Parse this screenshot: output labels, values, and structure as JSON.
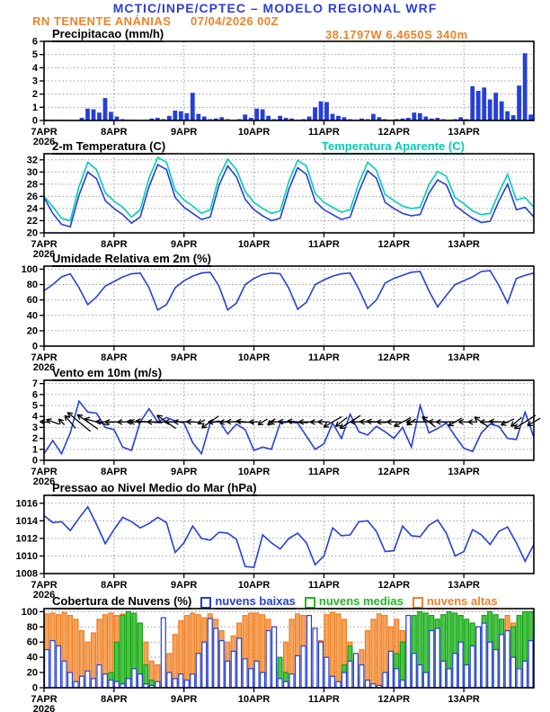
{
  "header": {
    "title": "MCTIC/INPE/CPTEC – MODELO REGIONAL WRF",
    "station": "RN TENENTE ANÁNIAS",
    "datetime": "07/04/2026 00Z",
    "coordinates": "38.1797W 6.4650S 340m"
  },
  "colors": {
    "header_blue": "#2d3fd4",
    "orange": "#f08228",
    "line_blue": "#2540d8",
    "cyan": "#00cdb7",
    "green": "#1fba20",
    "grid_gray": "#9a9a9a",
    "frame_black": "#000000"
  },
  "x_axis": {
    "labels": [
      "7APR",
      "8APR",
      "9APR",
      "10APR",
      "11APR",
      "12APR",
      "13APR"
    ],
    "year": "2026",
    "span_hours": 168
  },
  "chart_data": [
    {
      "name": "precipitation",
      "type": "bar",
      "title": "Precipitacao (mm/h)",
      "ylabel_unit": "mm/h",
      "ylim": [
        0,
        6
      ],
      "yticks": [
        0,
        1,
        2,
        3,
        4,
        5,
        6
      ],
      "step_hours": 2,
      "bar_color": "#2540d8",
      "values": [
        0.05,
        0.05,
        0.05,
        0,
        0,
        0,
        0.2,
        0.9,
        0.85,
        0.6,
        1.7,
        0.65,
        0.3,
        0.1,
        0.05,
        0.05,
        0,
        0.05,
        0.15,
        0.2,
        0.1,
        0.35,
        0.75,
        0.7,
        0.55,
        2.1,
        0.5,
        0.3,
        0.1,
        0.15,
        0.25,
        0.1,
        0.05,
        0.1,
        0.45,
        0.2,
        0.9,
        0.85,
        0.35,
        0.1,
        0.35,
        0.2,
        0.15,
        0.05,
        0.1,
        0.3,
        1.0,
        1.45,
        1.4,
        0.5,
        0.35,
        0.25,
        0.1,
        0.05,
        0.15,
        0.1,
        0.5,
        0.25,
        0.1,
        0.05,
        0.1,
        0.15,
        0.2,
        0.6,
        0.55,
        0.3,
        0.15,
        0.2,
        0.1,
        0.05,
        0.1,
        0.25,
        0.1,
        2.6,
        2.25,
        2.5,
        1.6,
        2.1,
        1.45,
        0.7,
        0.4,
        2.65,
        5.1,
        0.45
      ]
    },
    {
      "name": "temperature",
      "type": "line",
      "title": "2-m Temperatura (C)",
      "title2": "Temperatura Aparente (C)",
      "ylim": [
        20,
        33
      ],
      "yticks": [
        20,
        22,
        24,
        26,
        28,
        30,
        32
      ],
      "step_hours": 3,
      "series": [
        {
          "name": "2-m Temperatura (C)",
          "color": "#2540d8",
          "values": [
            25.8,
            23.2,
            21.4,
            21,
            26.2,
            30,
            28.9,
            25.3,
            24,
            23,
            21.6,
            22.6,
            27.6,
            31.2,
            30.4,
            25.8,
            24.2,
            23.2,
            22.2,
            22.6,
            27.8,
            31,
            29.2,
            25.5,
            23.8,
            22.8,
            22,
            22.4,
            27.2,
            30.7,
            29.6,
            25.2,
            23.8,
            23,
            22.2,
            22.6,
            26.8,
            30.2,
            29,
            25,
            24,
            23.2,
            22.8,
            23,
            26.5,
            28.7,
            27.9,
            24.5,
            23.4,
            22.4,
            21.7,
            21.9,
            25.2,
            28,
            23.8,
            24.2,
            22.6
          ]
        },
        {
          "name": "Temperatura Aparente (C)",
          "color": "#00cdb7",
          "values": [
            26,
            24.3,
            22.4,
            22,
            27.6,
            31.6,
            30.4,
            26.6,
            25.2,
            24.2,
            22.6,
            23.8,
            29,
            32.4,
            31.6,
            27,
            25.4,
            24.4,
            23.2,
            23.8,
            29.2,
            32.1,
            30.4,
            26.8,
            25,
            24,
            23.2,
            23.6,
            28.5,
            31.9,
            31,
            26.5,
            25,
            24.2,
            23.4,
            23.8,
            28.2,
            31.6,
            30.3,
            26.3,
            25.3,
            24.4,
            24,
            24.2,
            27.9,
            30.1,
            29.3,
            25.8,
            24.8,
            23.6,
            23,
            23.2,
            26.6,
            29.6,
            25.4,
            25.8,
            24.2
          ]
        }
      ]
    },
    {
      "name": "relative-humidity",
      "type": "line",
      "title": "Umidade Relativa em 2m (%)",
      "ylim": [
        0,
        104
      ],
      "yticks": [
        0,
        20,
        40,
        60,
        80,
        100
      ],
      "step_hours": 3,
      "series": [
        {
          "name": "Umidade Relativa",
          "color": "#2540d8",
          "values": [
            72,
            80,
            90,
            94,
            76,
            54,
            64,
            78,
            84,
            90,
            94,
            95,
            76,
            47,
            54,
            76,
            85,
            91,
            95,
            96,
            78,
            47,
            56,
            80,
            88,
            93,
            95,
            94,
            75,
            48,
            57,
            80,
            86,
            91,
            94,
            95,
            74,
            49,
            60,
            82,
            88,
            92,
            96,
            97,
            72,
            51,
            66,
            80,
            85,
            90,
            97,
            98,
            79,
            56,
            88,
            92,
            95
          ]
        }
      ]
    },
    {
      "name": "wind",
      "type": "wind",
      "title": "Vento em 10m (m/s)",
      "ylim": [
        0,
        7.3
      ],
      "yticks": [
        0,
        1,
        2,
        3,
        4,
        5,
        6,
        7
      ],
      "step_hours": 3,
      "arrow_baseline_value": 3.5,
      "arrow_color": "#000000",
      "speed_color": "#2540d8",
      "speed": [
        0.6,
        1.8,
        0.6,
        2.5,
        5.4,
        4.4,
        4.3,
        3,
        2.8,
        1.2,
        0.9,
        3.5,
        4.7,
        3.5,
        3.9,
        3.6,
        3.4,
        1.6,
        0.6,
        3.4,
        3.6,
        2.4,
        3.3,
        2.8,
        0.9,
        1.2,
        1,
        3.4,
        3.5,
        3.4,
        2.2,
        1,
        1.5,
        3.4,
        2,
        4.2,
        2.6,
        2.3,
        3.1,
        2.6,
        2,
        3,
        1.2,
        5,
        2.5,
        2.9,
        3.4,
        2.2,
        1.1,
        0.8,
        2.5,
        3.3,
        3.1,
        2,
        1.9,
        4.4,
        2.1
      ],
      "dir_deg": [
        185,
        200,
        225,
        230,
        220,
        215,
        195,
        182,
        180,
        178,
        182,
        180,
        184,
        180,
        215,
        180,
        180,
        183,
        150,
        145,
        180,
        178,
        182,
        185,
        180,
        148,
        140,
        180,
        182,
        185,
        180,
        178,
        180,
        150,
        142,
        148,
        180,
        182,
        184,
        180,
        180,
        152,
        146,
        180,
        218,
        182,
        180,
        150,
        182,
        180,
        215,
        180,
        183,
        155,
        140,
        148,
        150
      ]
    },
    {
      "name": "pressure",
      "type": "line",
      "title": "Pressao ao Nivel Medio do Mar (hPa)",
      "ylim": [
        1008,
        1016.9
      ],
      "yticks": [
        1008,
        1010,
        1012,
        1014,
        1016
      ],
      "step_hours": 3,
      "series": [
        {
          "name": "Pressao",
          "color": "#2540d8",
          "values": [
            1014.6,
            1013.8,
            1013.9,
            1012.9,
            1014.3,
            1015.6,
            1013.6,
            1011.4,
            1013,
            1014.4,
            1013.9,
            1013.2,
            1013.7,
            1014.4,
            1013.8,
            1010.4,
            1011.5,
            1013.4,
            1012,
            1011.8,
            1012.7,
            1012.6,
            1011.9,
            1008.8,
            1008.7,
            1012.4,
            1011.5,
            1010.8,
            1012,
            1012.6,
            1011.5,
            1009,
            1010,
            1013.2,
            1012.3,
            1012.4,
            1013.9,
            1014,
            1012.8,
            1010.5,
            1010.6,
            1013.4,
            1012.3,
            1012.2,
            1013.5,
            1014.1,
            1012.6,
            1010,
            1010.5,
            1013,
            1012.4,
            1011.3,
            1012.8,
            1013.3,
            1011.5,
            1009.4,
            1011.3
          ]
        }
      ]
    },
    {
      "name": "cloud-cover",
      "type": "cloud",
      "title": "Cobertura de Nuvens (%)",
      "ylim": [
        0,
        104
      ],
      "yticks": [
        0,
        20,
        40,
        60,
        80,
        100
      ],
      "step_hours": 2,
      "legend": [
        {
          "label": "nuvens baixas",
          "color": "#2540d8"
        },
        {
          "label": "nuvens medias",
          "color": "#1fba20"
        },
        {
          "label": "nuvens altas",
          "color": "#f08228"
        }
      ],
      "series": [
        {
          "name": "nuvens altas",
          "stroke": "#ef7f22",
          "fill": "#f5a35c",
          "values": [
            97,
            98,
            96,
            99,
            95,
            90,
            75,
            60,
            72,
            90,
            96,
            98,
            95,
            97,
            100,
            92,
            85,
            60,
            35,
            30,
            32,
            45,
            70,
            88,
            95,
            98,
            96,
            92,
            97,
            90,
            75,
            60,
            68,
            85,
            95,
            98,
            98,
            96,
            90,
            30,
            0,
            60,
            90,
            97,
            95,
            90,
            70,
            62,
            96,
            99,
            97,
            90,
            60,
            35,
            50,
            75,
            90,
            97,
            95,
            80,
            90,
            75,
            30,
            10,
            5,
            0,
            5,
            10,
            5,
            0,
            5,
            20,
            10,
            5,
            0,
            10,
            30,
            60,
            90,
            95,
            85,
            90,
            95,
            98
          ]
        },
        {
          "name": "nuvens medias",
          "stroke": "#18a018",
          "fill": "#46c846",
          "values": [
            0,
            0,
            0,
            0,
            0,
            0,
            5,
            10,
            5,
            0,
            0,
            20,
            60,
            95,
            100,
            98,
            85,
            30,
            10,
            5,
            0,
            0,
            0,
            0,
            0,
            0,
            0,
            5,
            10,
            5,
            0,
            0,
            0,
            0,
            0,
            5,
            0,
            0,
            5,
            20,
            40,
            20,
            5,
            0,
            0,
            5,
            10,
            5,
            0,
            0,
            5,
            30,
            55,
            35,
            15,
            5,
            0,
            0,
            10,
            30,
            45,
            60,
            80,
            95,
            100,
            98,
            95,
            90,
            96,
            100,
            98,
            95,
            90,
            85,
            80,
            95,
            100,
            96,
            90,
            60,
            80,
            95,
            100,
            100
          ]
        },
        {
          "name": "nuvens baixas",
          "stroke": "#2540d8",
          "fill": "#ffffff",
          "values": [
            50,
            62,
            55,
            35,
            20,
            8,
            15,
            22,
            12,
            30,
            18,
            10,
            8,
            5,
            12,
            25,
            18,
            5,
            3,
            8,
            92,
            20,
            12,
            18,
            10,
            18,
            45,
            60,
            91,
            78,
            62,
            35,
            48,
            65,
            38,
            25,
            35,
            20,
            75,
            80,
            12,
            8,
            18,
            42,
            55,
            95,
            78,
            60,
            40,
            15,
            8,
            20,
            35,
            45,
            30,
            10,
            5,
            3,
            20,
            48,
            25,
            10,
            95,
            45,
            30,
            20,
            75,
            78,
            35,
            25,
            45,
            60,
            30,
            55,
            80,
            85,
            60,
            50,
            70,
            75,
            40,
            25,
            35,
            62
          ]
        }
      ]
    }
  ]
}
